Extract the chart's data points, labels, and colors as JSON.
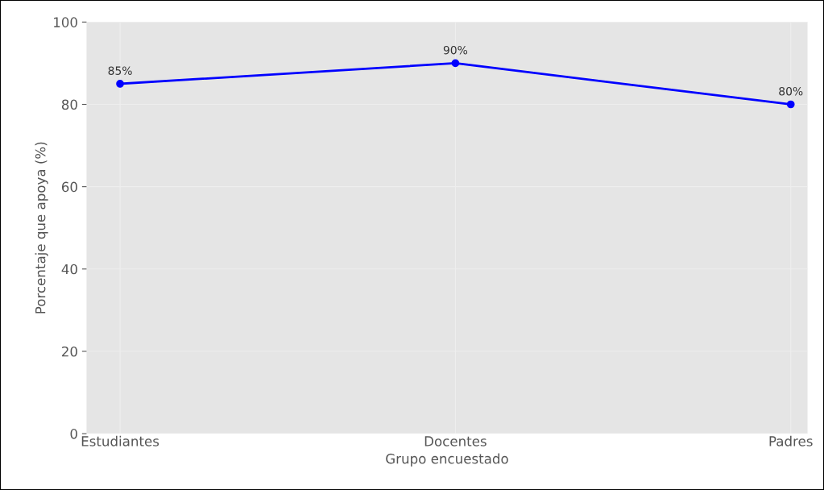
{
  "chart_data": {
    "type": "line",
    "xlabel": "Grupo encuestado",
    "ylabel": "Porcentaje que apoya (%)",
    "categories": [
      "Estudiantes",
      "Docentes",
      "Padres"
    ],
    "series": [
      {
        "color": "#0000ff",
        "values": [
          85,
          90,
          80
        ],
        "value_labels": [
          "85%",
          "90%",
          "80%"
        ]
      }
    ],
    "ylim": [
      0,
      100
    ],
    "yticks": [
      0,
      20,
      40,
      60,
      80,
      100
    ],
    "grid": true,
    "marker": "circle",
    "line_style": "solid"
  }
}
